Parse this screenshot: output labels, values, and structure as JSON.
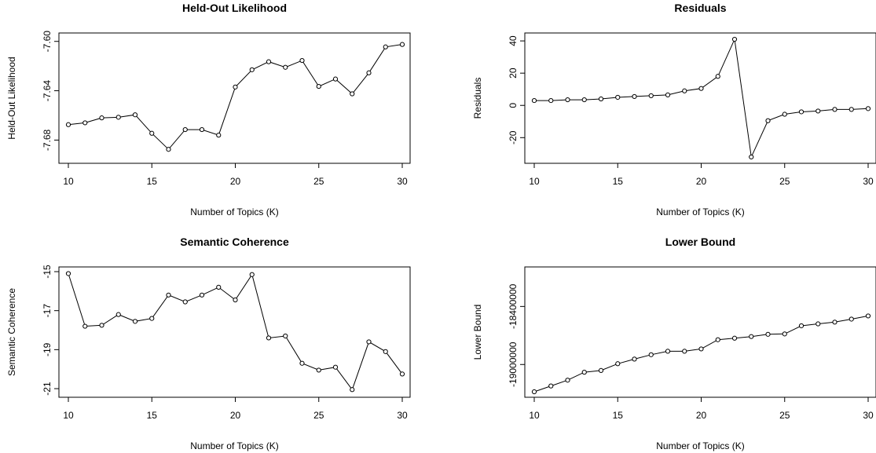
{
  "chart_data": [
    {
      "type": "line",
      "title": "Held-Out Likelihood",
      "xlabel": "Number of Topics (K)",
      "ylabel": "Held-Out Likelihood",
      "xlim": [
        10,
        30
      ],
      "ylim": [
        -7.695,
        -7.597
      ],
      "xticks": [
        10,
        15,
        20,
        25,
        30
      ],
      "yticks": [
        -7.68,
        -7.64,
        -7.6
      ],
      "ytick_labels": [
        "-7.68",
        "-7.64",
        "-7.60"
      ],
      "x": [
        10,
        11,
        12,
        13,
        14,
        15,
        16,
        17,
        18,
        19,
        20,
        21,
        22,
        23,
        24,
        25,
        26,
        27,
        28,
        29,
        30
      ],
      "y": [
        -7.6675,
        -7.666,
        -7.662,
        -7.6615,
        -7.6595,
        -7.6745,
        -7.6875,
        -7.6715,
        -7.6715,
        -7.676,
        -7.637,
        -7.623,
        -7.6165,
        -7.621,
        -7.6155,
        -7.6365,
        -7.6305,
        -7.6425,
        -7.6255,
        -7.6045,
        -7.6025
      ],
      "grid": false
    },
    {
      "type": "line",
      "title": "Residuals",
      "xlabel": "Number of Topics (K)",
      "ylabel": "Residuals",
      "xlim": [
        10,
        30
      ],
      "ylim": [
        -33,
        42
      ],
      "xticks": [
        10,
        15,
        20,
        25,
        30
      ],
      "yticks": [
        -20,
        0,
        20,
        40
      ],
      "ytick_labels": [
        "-20",
        "0",
        "20",
        "40"
      ],
      "x": [
        10,
        11,
        12,
        13,
        14,
        15,
        16,
        17,
        18,
        19,
        20,
        21,
        22,
        23,
        24,
        25,
        26,
        27,
        28,
        29,
        30
      ],
      "y": [
        3,
        3,
        3.5,
        3.5,
        4,
        5,
        5.5,
        6,
        6.5,
        9,
        10.5,
        18,
        41,
        -32,
        -9.5,
        -5.5,
        -4,
        -3.5,
        -2.5,
        -2.5,
        -2
      ],
      "grid": false
    },
    {
      "type": "line",
      "title": "Semantic Coherence",
      "xlabel": "Number of Topics (K)",
      "ylabel": "Semantic Coherence",
      "xlim": [
        10,
        30
      ],
      "ylim": [
        -21.2,
        -15
      ],
      "xticks": [
        10,
        15,
        20,
        25,
        30
      ],
      "yticks": [
        -21,
        -19,
        -17,
        -15
      ],
      "ytick_labels": [
        "-21",
        "-19",
        "-17",
        "-15"
      ],
      "x": [
        10,
        11,
        12,
        13,
        14,
        15,
        16,
        17,
        18,
        19,
        20,
        21,
        22,
        23,
        24,
        25,
        26,
        27,
        28,
        29,
        30
      ],
      "y": [
        -15.1,
        -17.8,
        -17.75,
        -17.2,
        -17.55,
        -17.4,
        -16.2,
        -16.55,
        -16.2,
        -15.8,
        -16.45,
        -15.15,
        -18.4,
        -18.3,
        -19.7,
        -20.05,
        -19.9,
        -21.05,
        -18.6,
        -19.1,
        -20.25
      ],
      "grid": false
    },
    {
      "type": "line",
      "title": "Lower Bound",
      "xlabel": "Number of Topics (K)",
      "ylabel": "Lower Bound",
      "xlim": [
        10,
        30
      ],
      "ylim": [
        -19290000,
        -18040000
      ],
      "xticks": [
        10,
        15,
        20,
        25,
        30
      ],
      "yticks": [
        -19000000,
        -18400000
      ],
      "ytick_labels": [
        "-19000000",
        "-18400000"
      ],
      "x": [
        10,
        11,
        12,
        13,
        14,
        15,
        16,
        17,
        18,
        19,
        20,
        21,
        22,
        23,
        24,
        25,
        26,
        27,
        28,
        29,
        30
      ],
      "y": [
        -19282000,
        -19222000,
        -19162000,
        -19080000,
        -19062000,
        -18992000,
        -18944000,
        -18899000,
        -18863000,
        -18863000,
        -18839000,
        -18744000,
        -18728000,
        -18711000,
        -18688000,
        -18684000,
        -18600000,
        -18580000,
        -18562000,
        -18531000,
        -18498000
      ],
      "grid": false
    }
  ]
}
